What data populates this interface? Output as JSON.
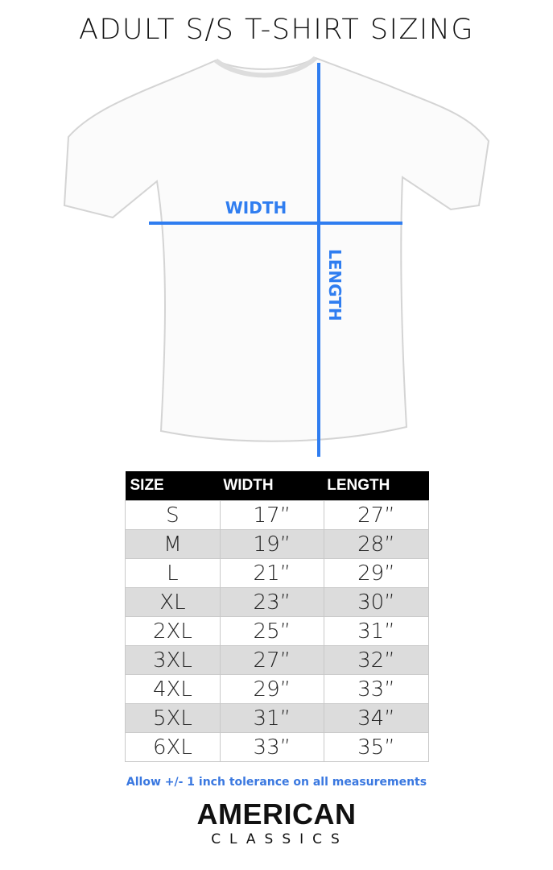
{
  "title": "ADULT S/S T-SHIRT SIZING",
  "diagram": {
    "width_label": "WIDTH",
    "length_label": "LENGTH",
    "line_color": "#2f7df0"
  },
  "table": {
    "headers": [
      "SIZE",
      "WIDTH",
      "LENGTH"
    ],
    "rows": [
      [
        "S",
        "17”",
        "27”"
      ],
      [
        "M",
        "19”",
        "28”"
      ],
      [
        "L",
        "21”",
        "29”"
      ],
      [
        "XL",
        "23”",
        "30”"
      ],
      [
        "2XL",
        "25”",
        "31”"
      ],
      [
        "3XL",
        "27”",
        "32”"
      ],
      [
        "4XL",
        "29”",
        "33”"
      ],
      [
        "5XL",
        "31”",
        "34”"
      ],
      [
        "6XL",
        "33”",
        "35”"
      ]
    ]
  },
  "note": "Allow +/- 1 inch tolerance on all measurements",
  "logo": {
    "line1": "AMERICAN",
    "line2": "CLASSICS"
  }
}
